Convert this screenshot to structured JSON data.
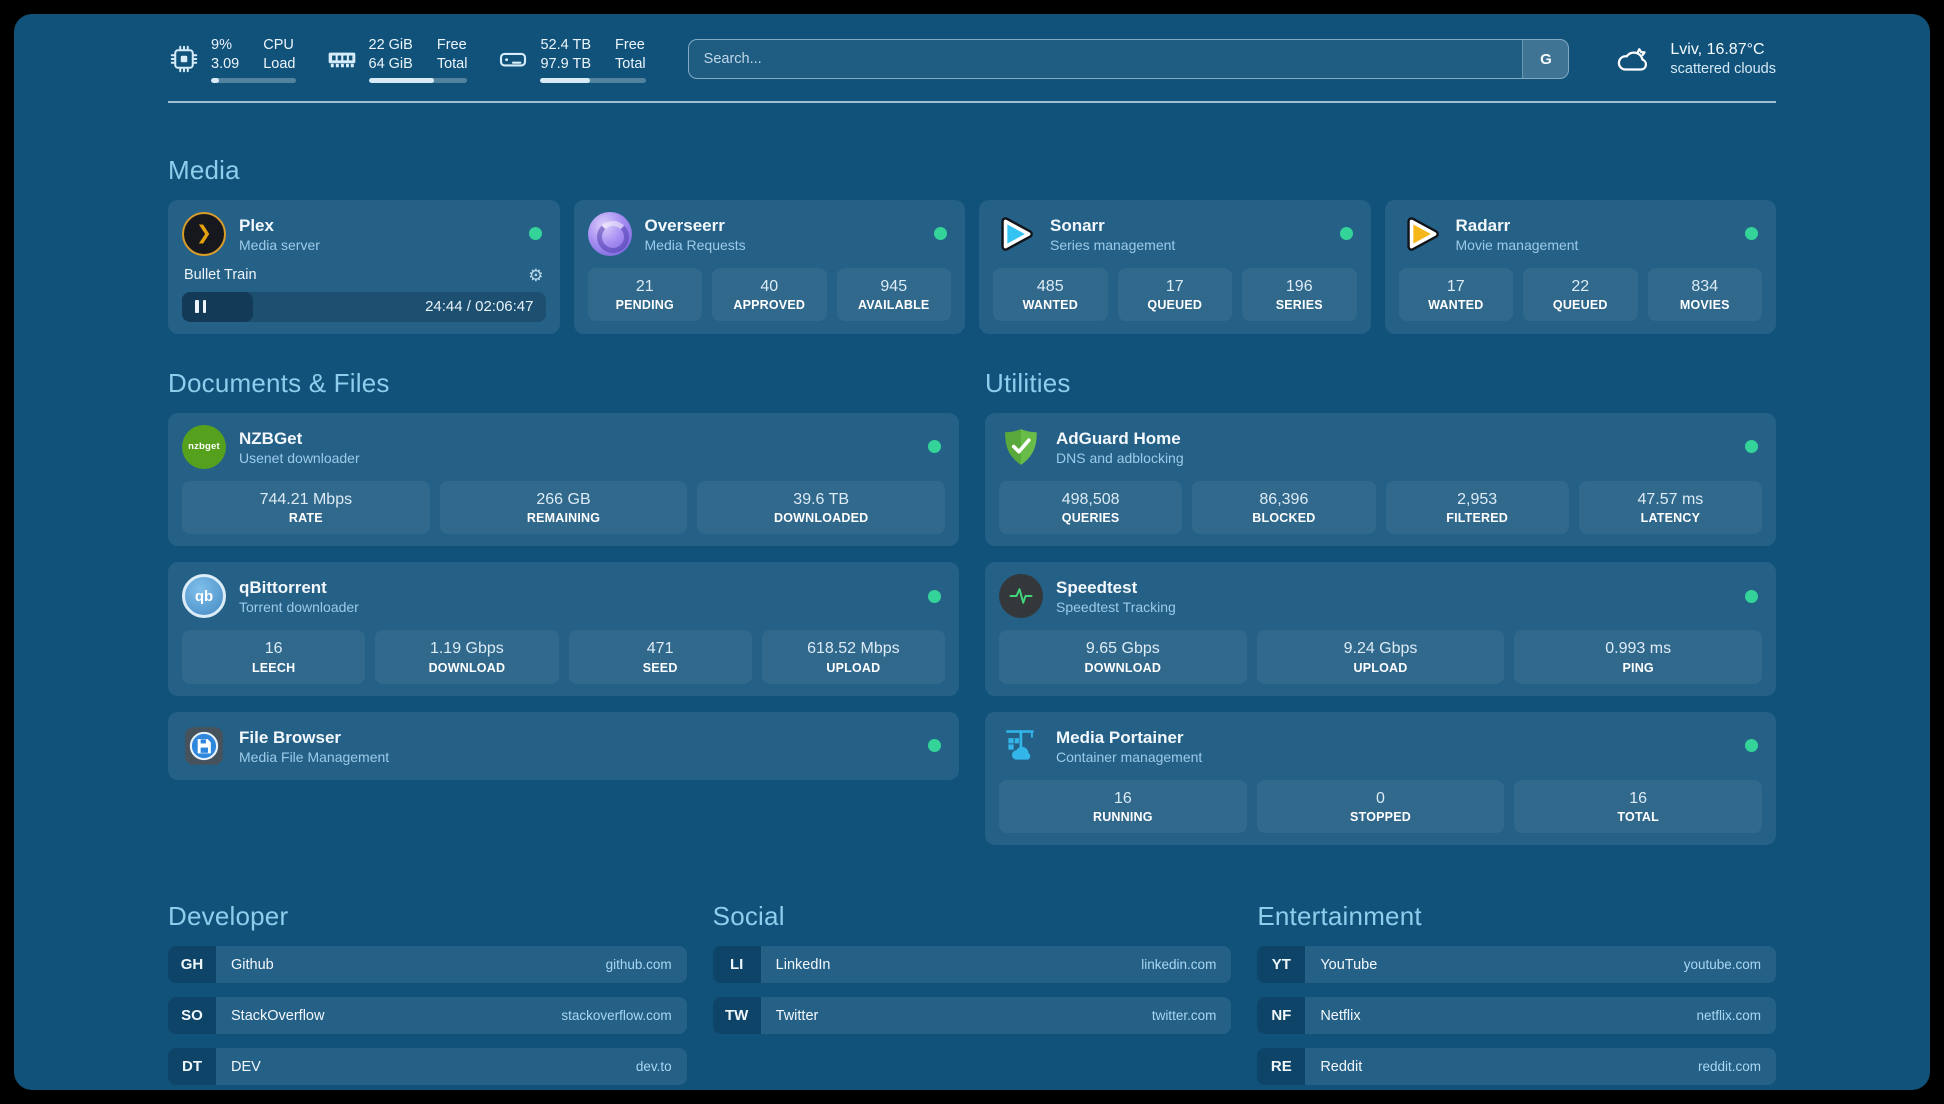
{
  "colors": {
    "background": "#11527b",
    "status_online": "#34d399",
    "section_heading": "#8fcdec",
    "link": "#a9d7f2"
  },
  "header": {
    "metrics": [
      {
        "icon": "cpu-icon",
        "value_top": "9%",
        "value_bottom": "3.09",
        "label_top": "CPU",
        "label_bottom": "Load",
        "progress_percent": 9
      },
      {
        "icon": "memory-icon",
        "value_top": "22 GiB",
        "value_bottom": "64 GiB",
        "label_top": "Free",
        "label_bottom": "Total",
        "progress_percent": 66
      },
      {
        "icon": "disk-icon",
        "value_top": "52.4 TB",
        "value_bottom": "97.9 TB",
        "label_top": "Free",
        "label_bottom": "Total",
        "progress_percent": 47
      }
    ],
    "search": {
      "placeholder": "Search...",
      "engine_label": "G"
    },
    "weather": {
      "icon": "cloud-icon",
      "location_temp": "Lviv, 16.87°C",
      "condition": "scattered clouds"
    }
  },
  "media": {
    "title": "Media",
    "cards": [
      {
        "name": "Plex",
        "desc": "Media server",
        "icon": "plex-icon",
        "status": "online",
        "player": {
          "title": "Bullet Train",
          "state": "paused",
          "time": "24:44 / 02:06:47",
          "progress_percent": 19.5
        }
      },
      {
        "name": "Overseerr",
        "desc": "Media Requests",
        "icon": "overseerr-icon",
        "status": "online",
        "stats": [
          {
            "value": "21",
            "label": "PENDING"
          },
          {
            "value": "40",
            "label": "APPROVED"
          },
          {
            "value": "945",
            "label": "AVAILABLE"
          }
        ]
      },
      {
        "name": "Sonarr",
        "desc": "Series management",
        "icon": "sonarr-icon",
        "status": "online",
        "stats": [
          {
            "value": "485",
            "label": "WANTED"
          },
          {
            "value": "17",
            "label": "QUEUED"
          },
          {
            "value": "196",
            "label": "SERIES"
          }
        ]
      },
      {
        "name": "Radarr",
        "desc": "Movie management",
        "icon": "radarr-icon",
        "status": "online",
        "stats": [
          {
            "value": "17",
            "label": "WANTED"
          },
          {
            "value": "22",
            "label": "QUEUED"
          },
          {
            "value": "834",
            "label": "MOVIES"
          }
        ]
      }
    ]
  },
  "documents": {
    "title": "Documents & Files",
    "cards": [
      {
        "name": "NZBGet",
        "desc": "Usenet downloader",
        "icon": "nzbget-icon",
        "icon_label": "nzbget",
        "status": "online",
        "stats": [
          {
            "value": "744.21 Mbps",
            "label": "RATE"
          },
          {
            "value": "266 GB",
            "label": "REMAINING"
          },
          {
            "value": "39.6 TB",
            "label": "DOWNLOADED"
          }
        ]
      },
      {
        "name": "qBittorrent",
        "desc": "Torrent downloader",
        "icon": "qbittorrent-icon",
        "icon_label": "qb",
        "status": "online",
        "stats": [
          {
            "value": "16",
            "label": "LEECH"
          },
          {
            "value": "1.19 Gbps",
            "label": "DOWNLOAD"
          },
          {
            "value": "471",
            "label": "SEED"
          },
          {
            "value": "618.52 Mbps",
            "label": "UPLOAD"
          }
        ]
      },
      {
        "name": "File Browser",
        "desc": "Media File Management",
        "icon": "filebrowser-icon",
        "status": "online"
      }
    ]
  },
  "utilities": {
    "title": "Utilities",
    "cards": [
      {
        "name": "AdGuard Home",
        "desc": "DNS and adblocking",
        "icon": "adguard-icon",
        "status": "online",
        "stats": [
          {
            "value": "498,508",
            "label": "QUERIES"
          },
          {
            "value": "86,396",
            "label": "BLOCKED"
          },
          {
            "value": "2,953",
            "label": "FILTERED"
          },
          {
            "value": "47.57 ms",
            "label": "LATENCY"
          }
        ]
      },
      {
        "name": "Speedtest",
        "desc": "Speedtest Tracking",
        "icon": "speedtest-icon",
        "status": "online",
        "stats": [
          {
            "value": "9.65 Gbps",
            "label": "DOWNLOAD"
          },
          {
            "value": "9.24 Gbps",
            "label": "UPLOAD"
          },
          {
            "value": "0.993 ms",
            "label": "PING"
          }
        ]
      },
      {
        "name": "Media Portainer",
        "desc": "Container management",
        "icon": "portainer-icon",
        "status": "online",
        "stats": [
          {
            "value": "16",
            "label": "RUNNING"
          },
          {
            "value": "0",
            "label": "STOPPED"
          },
          {
            "value": "16",
            "label": "TOTAL"
          }
        ]
      }
    ]
  },
  "bookmarks": {
    "groups": [
      {
        "title": "Developer",
        "items": [
          {
            "abbr": "GH",
            "name": "Github",
            "url": "github.com"
          },
          {
            "abbr": "SO",
            "name": "StackOverflow",
            "url": "stackoverflow.com"
          },
          {
            "abbr": "DT",
            "name": "DEV",
            "url": "dev.to"
          }
        ]
      },
      {
        "title": "Social",
        "items": [
          {
            "abbr": "LI",
            "name": "LinkedIn",
            "url": "linkedin.com"
          },
          {
            "abbr": "TW",
            "name": "Twitter",
            "url": "twitter.com"
          }
        ]
      },
      {
        "title": "Entertainment",
        "items": [
          {
            "abbr": "YT",
            "name": "YouTube",
            "url": "youtube.com"
          },
          {
            "abbr": "NF",
            "name": "Netflix",
            "url": "netflix.com"
          },
          {
            "abbr": "RE",
            "name": "Reddit",
            "url": "reddit.com"
          }
        ]
      }
    ]
  }
}
